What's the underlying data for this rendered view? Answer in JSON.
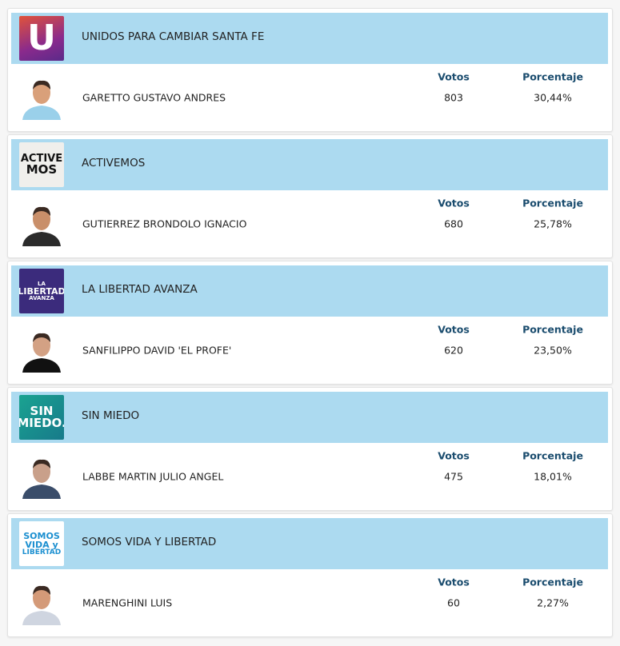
{
  "columns": {
    "votes": "Votos",
    "percentage": "Porcentaje"
  },
  "parties": [
    {
      "name": "UNIDOS PARA CAMBIAR SANTA FE",
      "logo": [
        "U"
      ],
      "candidate": "GARETTO GUSTAVO ANDRES",
      "votes": 803,
      "percentage": "30,44%"
    },
    {
      "name": "ACTIVEMOS",
      "logo": [
        "ACTIVE",
        "MOS"
      ],
      "candidate": "GUTIERREZ BRONDOLO IGNACIO",
      "votes": 680,
      "percentage": "25,78%"
    },
    {
      "name": "LA LIBERTAD AVANZA",
      "logo": [
        "LA",
        "LIBERTAD",
        "AVANZA"
      ],
      "candidate": "SANFILIPPO DAVID 'EL PROFE'",
      "votes": 620,
      "percentage": "23,50%"
    },
    {
      "name": "SIN MIEDO",
      "logo": [
        "SIN",
        "MIEDO."
      ],
      "candidate": "LABBE MARTIN JULIO ANGEL",
      "votes": 475,
      "percentage": "18,01%"
    },
    {
      "name": "SOMOS VIDA Y LIBERTAD",
      "logo": [
        "SOMOS",
        "VIDA y",
        "LIBERTAD"
      ],
      "candidate": "MARENGHINI LUIS",
      "votes": 60,
      "percentage": "2,27%"
    }
  ]
}
